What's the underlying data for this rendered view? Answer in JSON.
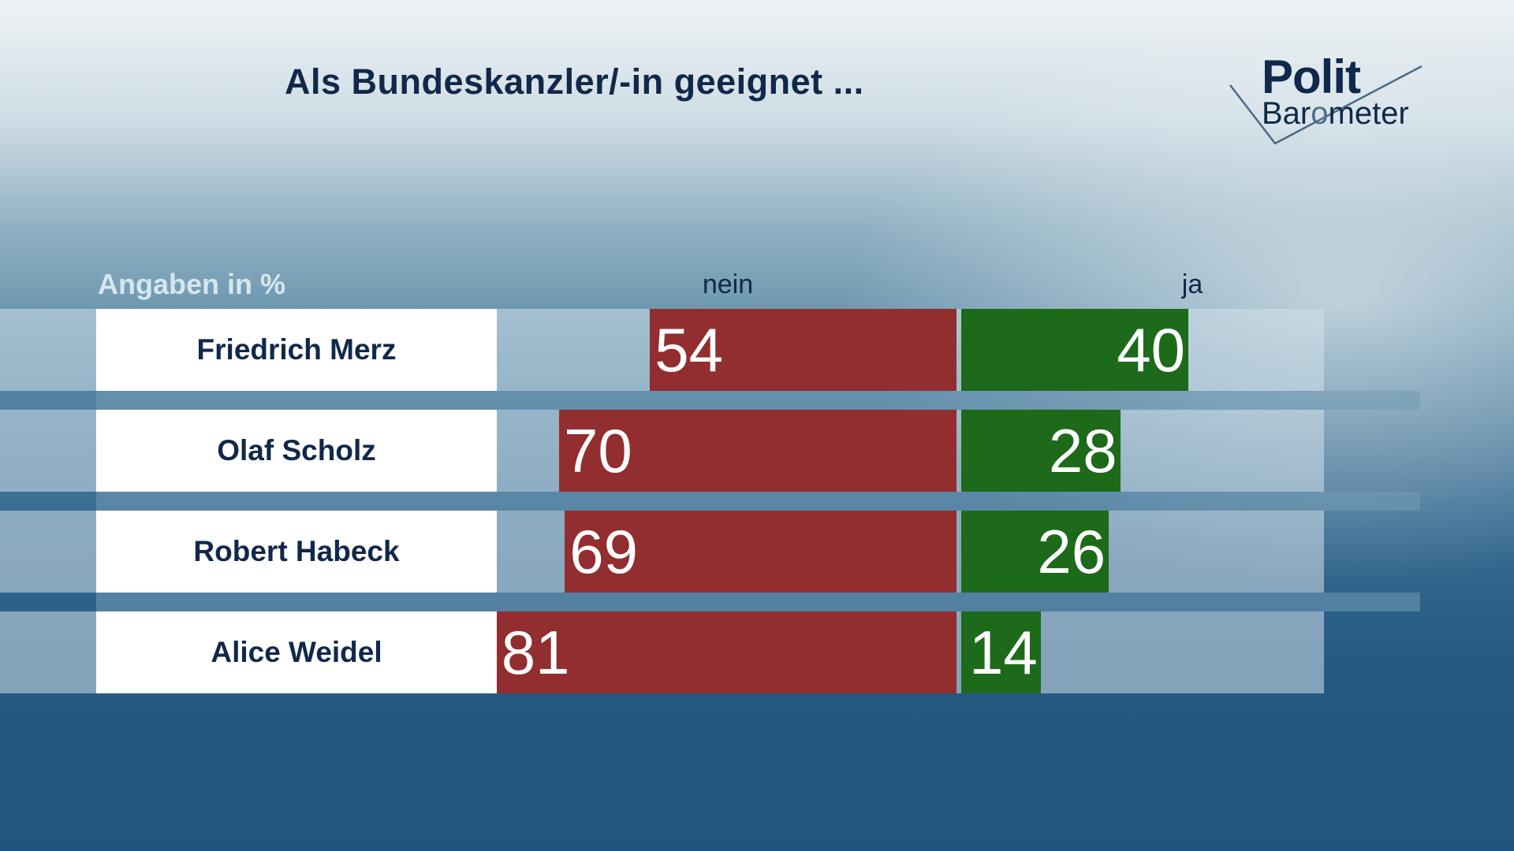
{
  "title": "Als Bundeskanzler/-in geeignet ...",
  "logo": {
    "line1": "Polit",
    "line2_pre": "Bar",
    "line2_o": "o",
    "line2_post": "meter"
  },
  "unit_label": "Angaben in %",
  "colors": {
    "nein": "#922d30",
    "ja": "#1c6a1a",
    "text_dark": "#10284a"
  },
  "chart_data": {
    "type": "bar",
    "orientation": "horizontal-diverging",
    "title": "Als Bundeskanzler/-in geeignet ...",
    "unit": "Angaben in %",
    "categories": [
      "Friedrich Merz",
      "Olaf Scholz",
      "Robert Habeck",
      "Alice Weidel"
    ],
    "series": [
      {
        "name": "nein",
        "values": [
          54,
          70,
          69,
          81
        ],
        "color": "#922d30",
        "direction": "left"
      },
      {
        "name": "ja",
        "values": [
          40,
          28,
          26,
          14
        ],
        "color": "#1c6a1a",
        "direction": "right"
      }
    ],
    "xlim": [
      0,
      100
    ],
    "grid": false,
    "legend": "top"
  }
}
